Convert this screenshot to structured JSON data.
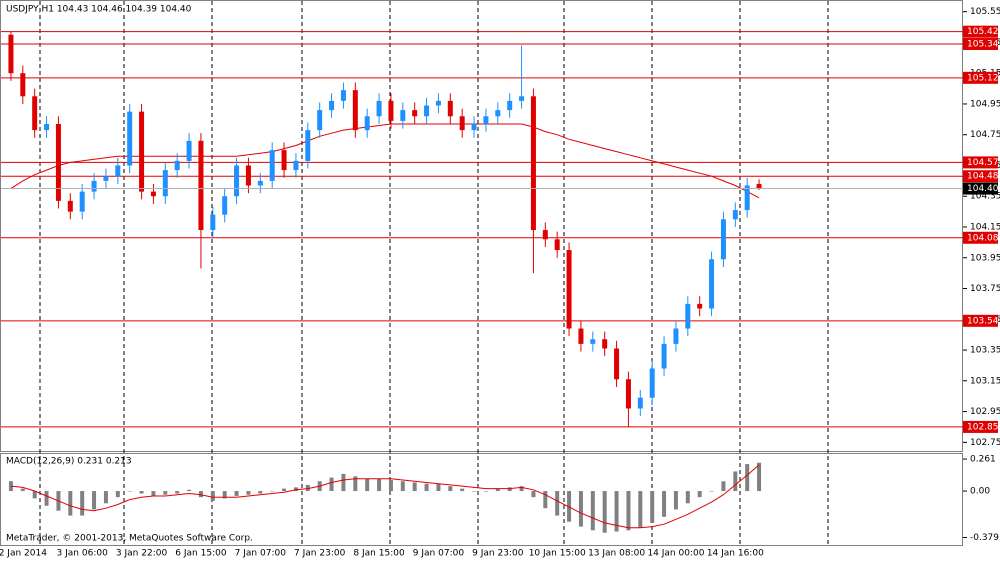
{
  "chart_data": [
    {
      "type": "candlestick",
      "title": "USDJPY,H1  104.43 104.46 104.39 104.40",
      "categories": [
        null,
        "2 Jan 2014",
        null,
        null,
        null,
        null,
        "3 Jan 06:00",
        null,
        null,
        null,
        null,
        "3 Jan 22:00",
        null,
        null,
        null,
        null,
        "6 Jan 15:00",
        null,
        null,
        null,
        null,
        "7 Jan 07:00",
        null,
        null,
        null,
        null,
        "7 Jan 23:00",
        null,
        null,
        null,
        null,
        "8 Jan 15:00",
        null,
        null,
        null,
        null,
        "9 Jan 07:00",
        null,
        null,
        null,
        null,
        "9 Jan 23:00",
        null,
        null,
        null,
        null,
        "10 Jan 15:00",
        null,
        null,
        null,
        null,
        "13 Jan 08:00",
        null,
        null,
        null,
        null,
        "14 Jan 00:00",
        null,
        null,
        null,
        null,
        "14 Jan 16:00",
        null,
        null
      ],
      "open": [
        105.4,
        105.15,
        105.0,
        104.78,
        104.82,
        104.32,
        104.25,
        104.38,
        104.45,
        104.48,
        104.55,
        104.9,
        104.38,
        104.35,
        104.52,
        104.58,
        104.71,
        104.13,
        104.23,
        104.35,
        104.55,
        104.42,
        104.45,
        104.65,
        104.52,
        104.58,
        104.78,
        104.91,
        104.97,
        105.04,
        104.78,
        104.87,
        104.97,
        104.84,
        104.91,
        104.87,
        104.94,
        104.97,
        104.87,
        104.78,
        104.82,
        104.87,
        104.91,
        104.97,
        105.0,
        104.13,
        104.07,
        104.0,
        103.49,
        103.39,
        103.42,
        103.36,
        103.16,
        102.97,
        103.04,
        103.23,
        103.39,
        103.49,
        103.65,
        103.62,
        103.94,
        104.2,
        104.26,
        104.43
      ],
      "high": [
        105.42,
        105.2,
        105.05,
        104.87,
        104.87,
        104.37,
        104.43,
        104.5,
        104.53,
        104.6,
        104.95,
        104.95,
        104.43,
        104.57,
        104.63,
        104.76,
        104.76,
        104.28,
        104.4,
        104.6,
        104.6,
        104.5,
        104.7,
        104.7,
        104.63,
        104.83,
        104.96,
        105.02,
        105.09,
        105.09,
        104.92,
        105.02,
        105.02,
        104.96,
        104.96,
        104.99,
        105.02,
        105.02,
        104.92,
        104.87,
        104.92,
        104.96,
        105.02,
        105.33,
        105.05,
        104.18,
        104.12,
        104.05,
        103.54,
        103.47,
        103.47,
        103.41,
        103.21,
        103.09,
        103.28,
        103.44,
        103.54,
        103.7,
        103.7,
        103.99,
        104.25,
        104.31,
        104.47,
        104.46
      ],
      "low": [
        105.1,
        104.95,
        104.73,
        104.73,
        104.27,
        104.2,
        104.2,
        104.33,
        104.4,
        104.43,
        104.5,
        104.33,
        104.3,
        104.3,
        104.47,
        104.53,
        103.88,
        104.08,
        104.18,
        104.3,
        104.37,
        104.37,
        104.4,
        104.47,
        104.47,
        104.53,
        104.73,
        104.86,
        104.92,
        104.73,
        104.73,
        104.82,
        104.79,
        104.79,
        104.82,
        104.82,
        104.89,
        104.82,
        104.73,
        104.73,
        104.77,
        104.82,
        104.86,
        104.92,
        103.85,
        104.02,
        103.95,
        103.44,
        103.34,
        103.34,
        103.31,
        103.11,
        102.85,
        102.92,
        102.99,
        103.18,
        103.34,
        103.44,
        103.57,
        103.57,
        103.89,
        104.15,
        104.21,
        104.39
      ],
      "close": [
        105.15,
        105.0,
        104.78,
        104.82,
        104.32,
        104.25,
        104.38,
        104.45,
        104.48,
        104.55,
        104.9,
        104.38,
        104.35,
        104.52,
        104.58,
        104.71,
        104.13,
        104.23,
        104.35,
        104.55,
        104.42,
        104.45,
        104.65,
        104.52,
        104.58,
        104.78,
        104.91,
        104.97,
        105.04,
        104.78,
        104.87,
        104.97,
        104.84,
        104.91,
        104.87,
        104.94,
        104.97,
        104.87,
        104.78,
        104.82,
        104.87,
        104.91,
        104.97,
        105.0,
        104.13,
        104.07,
        104.0,
        103.49,
        103.39,
        103.42,
        103.36,
        103.16,
        102.97,
        103.04,
        103.23,
        103.39,
        103.49,
        103.65,
        103.62,
        103.94,
        104.2,
        104.26,
        104.42,
        104.4
      ],
      "bull_color": "#1e90ff",
      "bear_color": "#e00000",
      "moving_average": {
        "color": "#e00000",
        "values": [
          104.4,
          104.45,
          104.49,
          104.52,
          104.55,
          104.57,
          104.58,
          104.59,
          104.6,
          104.61,
          104.61,
          104.61,
          104.61,
          104.61,
          104.61,
          104.61,
          104.61,
          104.61,
          104.61,
          104.61,
          104.62,
          104.63,
          104.64,
          104.66,
          104.68,
          104.71,
          104.74,
          104.76,
          104.78,
          104.79,
          104.8,
          104.81,
          104.82,
          104.82,
          104.82,
          104.82,
          104.82,
          104.82,
          104.82,
          104.82,
          104.82,
          104.82,
          104.82,
          104.82,
          104.8,
          104.77,
          104.75,
          104.72,
          104.7,
          104.68,
          104.66,
          104.64,
          104.62,
          104.6,
          104.58,
          104.56,
          104.54,
          104.52,
          104.5,
          104.48,
          104.45,
          104.42,
          104.38,
          104.34
        ]
      },
      "hlines": [
        105.42,
        105.34,
        105.12,
        104.57,
        104.48,
        104.08,
        103.54,
        102.85
      ],
      "hline_color": "#e00000",
      "last": {
        "value": 104.4,
        "label": "104.40"
      },
      "ylim": [
        102.7,
        105.6
      ],
      "yticks": [
        105.55,
        105.35,
        105.15,
        104.95,
        104.75,
        104.55,
        104.35,
        104.15,
        103.95,
        103.75,
        103.55,
        103.35,
        103.15,
        102.95,
        102.75
      ]
    },
    {
      "type": "macd",
      "title": "MACD(12,26,9) 0.231 0.213",
      "histogram": {
        "color": "#808080",
        "values": [
          0.08,
          0.02,
          -0.06,
          -0.12,
          -0.16,
          -0.2,
          -0.2,
          -0.15,
          -0.1,
          -0.05,
          0.0,
          -0.02,
          -0.04,
          -0.03,
          -0.02,
          0.01,
          -0.05,
          -0.08,
          -0.06,
          -0.04,
          -0.03,
          -0.02,
          0.0,
          0.02,
          0.03,
          0.05,
          0.08,
          0.11,
          0.14,
          0.12,
          0.1,
          0.1,
          0.09,
          0.08,
          0.07,
          0.06,
          0.06,
          0.04,
          0.02,
          0.0,
          0.0,
          0.02,
          0.03,
          0.04,
          -0.05,
          -0.14,
          -0.2,
          -0.25,
          -0.29,
          -0.32,
          -0.34,
          -0.33,
          -0.32,
          -0.3,
          -0.26,
          -0.21,
          -0.15,
          -0.1,
          -0.05,
          0.0,
          0.08,
          0.16,
          0.22,
          0.231
        ]
      },
      "signal": {
        "color": "#e00000",
        "values": [
          0.04,
          0.03,
          0.0,
          -0.04,
          -0.08,
          -0.12,
          -0.15,
          -0.16,
          -0.14,
          -0.11,
          -0.07,
          -0.05,
          -0.04,
          -0.04,
          -0.03,
          -0.02,
          -0.03,
          -0.05,
          -0.05,
          -0.05,
          -0.04,
          -0.03,
          -0.02,
          -0.01,
          0.01,
          0.02,
          0.04,
          0.07,
          0.09,
          0.1,
          0.1,
          0.1,
          0.1,
          0.09,
          0.08,
          0.07,
          0.06,
          0.05,
          0.04,
          0.03,
          0.02,
          0.02,
          0.02,
          0.03,
          0.01,
          -0.03,
          -0.08,
          -0.13,
          -0.18,
          -0.22,
          -0.26,
          -0.28,
          -0.3,
          -0.3,
          -0.29,
          -0.27,
          -0.23,
          -0.19,
          -0.14,
          -0.09,
          -0.03,
          0.05,
          0.13,
          0.213
        ]
      },
      "ylim": [
        -0.44,
        0.294
      ],
      "yticks": [
        0.261,
        {
          "value": 0,
          "label": "0.00"
        },
        -0.379
      ],
      "footer": "MetaTrader, © 2001-2013, MetaQuotes Software Corp."
    }
  ]
}
